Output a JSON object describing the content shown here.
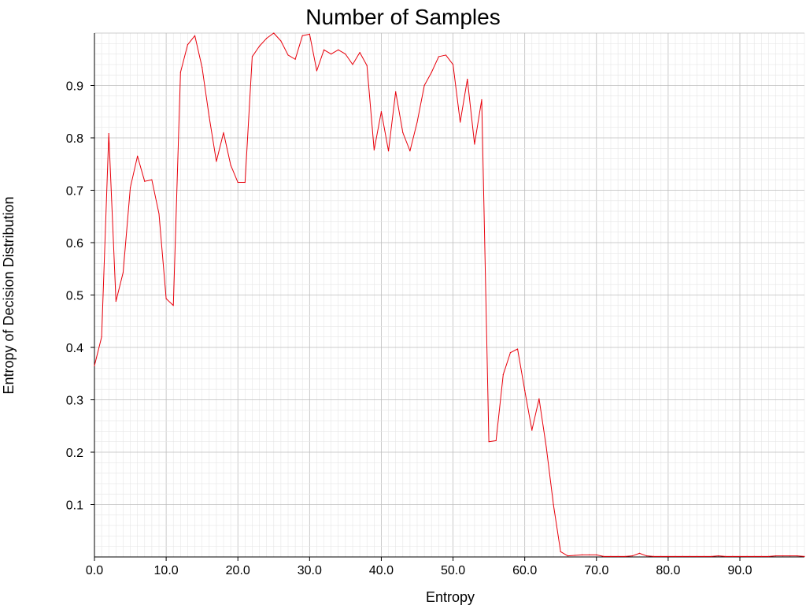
{
  "chart_data": {
    "type": "line",
    "title": "Number of Samples",
    "xlabel": "Entropy",
    "ylabel": "Entropy of Decision Distribution",
    "xlim": [
      0,
      99
    ],
    "ylim": [
      0,
      1.0
    ],
    "x_ticks": [
      "0.0",
      "10.0",
      "20.0",
      "30.0",
      "40.0",
      "50.0",
      "60.0",
      "70.0",
      "80.0",
      "90.0"
    ],
    "y_ticks": [
      "0.1",
      "0.2",
      "0.3",
      "0.4",
      "0.5",
      "0.6",
      "0.7",
      "0.8",
      "0.9"
    ],
    "grid": true,
    "line_color": "#e8000b",
    "series": [
      {
        "name": "",
        "x": [
          0,
          1,
          2,
          3,
          4,
          5,
          6,
          7,
          8,
          9,
          10,
          11,
          12,
          13,
          14,
          15,
          16,
          17,
          18,
          19,
          20,
          21,
          22,
          23,
          24,
          25,
          26,
          27,
          28,
          29,
          30,
          31,
          32,
          33,
          34,
          35,
          36,
          37,
          38,
          39,
          40,
          41,
          42,
          43,
          44,
          45,
          46,
          47,
          48,
          49,
          50,
          51,
          52,
          53,
          54,
          55,
          56,
          57,
          58,
          59,
          60,
          61,
          62,
          63,
          64,
          65,
          66,
          67,
          68,
          69,
          70,
          71,
          72,
          73,
          74,
          75,
          76,
          77,
          78,
          79,
          80,
          81,
          82,
          83,
          84,
          85,
          86,
          87,
          88,
          89,
          90,
          91,
          92,
          93,
          94,
          95,
          96,
          97,
          98,
          99
        ],
        "y": [
          0.365,
          0.42,
          0.808,
          0.488,
          0.543,
          0.705,
          0.765,
          0.717,
          0.72,
          0.655,
          0.493,
          0.48,
          0.925,
          0.978,
          0.995,
          0.935,
          0.84,
          0.755,
          0.81,
          0.748,
          0.715,
          0.715,
          0.955,
          0.975,
          0.99,
          1.0,
          0.985,
          0.958,
          0.95,
          0.995,
          0.998,
          0.928,
          0.968,
          0.96,
          0.968,
          0.96,
          0.94,
          0.963,
          0.938,
          0.777,
          0.85,
          0.775,
          0.888,
          0.81,
          0.775,
          0.83,
          0.9,
          0.925,
          0.955,
          0.958,
          0.94,
          0.83,
          0.912,
          0.788,
          0.873,
          0.22,
          0.222,
          0.348,
          0.39,
          0.397,
          0.318,
          0.242,
          0.302,
          0.21,
          0.1,
          0.01,
          0.002,
          0.003,
          0.004,
          0.004,
          0.004,
          0.001,
          0.001,
          0.001,
          0.001,
          0.002,
          0.007,
          0.002,
          0.001,
          0.001,
          0.001,
          0.001,
          0.001,
          0.001,
          0.001,
          0.001,
          0.001,
          0.002,
          0.001,
          0.001,
          0.001,
          0.001,
          0.001,
          0.001,
          0.001,
          0.002,
          0.002,
          0.002,
          0.002,
          0.001
        ]
      }
    ]
  }
}
